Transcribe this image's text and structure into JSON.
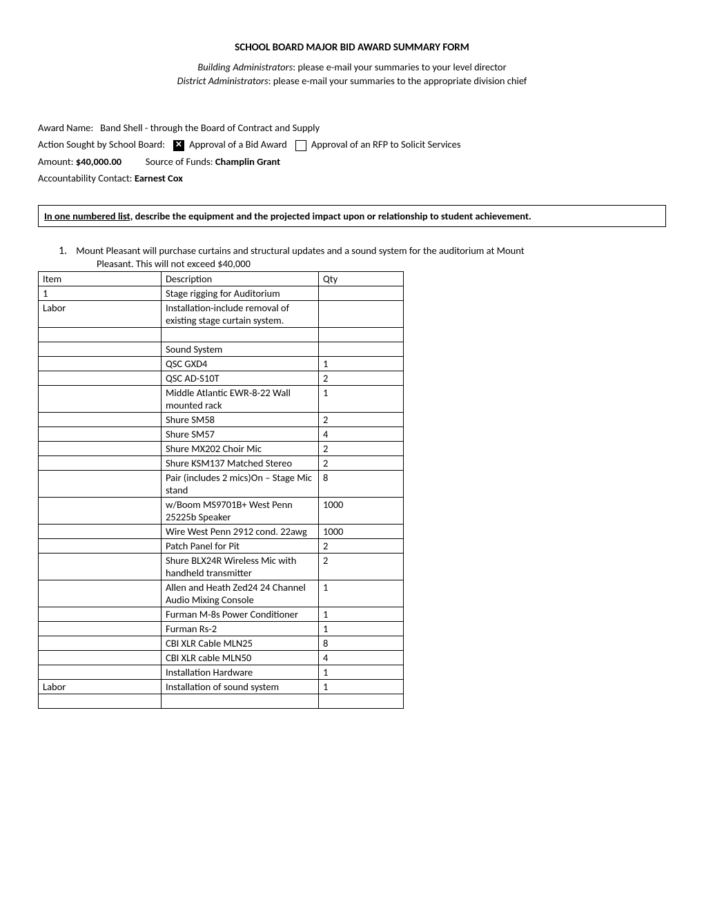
{
  "title": "SCHOOL BOARD  MAJOR BID AWARD SUMMARY FORM",
  "subtitles": [
    {
      "label": "Building Administrators",
      "text": ": please e-mail your summaries to your level director"
    },
    {
      "label": "District Administrators",
      "text": ": please e-mail your summaries to the appropriate division chief"
    }
  ],
  "award_name_label": "Award Name:",
  "award_name": "Band Shell - through the Board of Contract and Supply",
  "action_label": "Action Sought by School Board:",
  "action_bid": "Approval of a Bid Award",
  "action_rfp": "Approval of an RFP to Solicit Services",
  "bid_checked": true,
  "rfp_checked": false,
  "amount_label": "Amount:",
  "amount": "$40,000.00",
  "source_label": "Source of Funds:",
  "source": "Champlin Grant",
  "contact_label": "Accountability Contact:",
  "contact": "Earnest Cox",
  "instruction_underline": "In one numbered list,",
  "instruction_rest": " describe the  equipment and the projected impact upon or relationship to student achievement.",
  "list_number": "1.",
  "list_text_1": "Mount Pleasant will purchase curtains and structural updates and a sound system for the auditorium at Mount",
  "list_text_2": "Pleasant.  This will not exceed $40,000",
  "table": {
    "columns": [
      "Item",
      "Description",
      "Qty"
    ],
    "rows": [
      [
        "1",
        "Stage rigging for Auditorium",
        ""
      ],
      [
        "Labor",
        "Installation-include removal of existing stage curtain system.",
        ""
      ],
      [
        "",
        "",
        ""
      ],
      [
        "",
        "Sound System",
        ""
      ],
      [
        "",
        "QSC GXD4",
        "1"
      ],
      [
        "",
        "QSC AD-S10T",
        "2"
      ],
      [
        "",
        "Middle Atlantic EWR-8-22 Wall mounted rack",
        "1"
      ],
      [
        "",
        "Shure SM58",
        "2"
      ],
      [
        "",
        "Shure SM57",
        "4"
      ],
      [
        "",
        "Shure MX202 Choir Mic",
        "2"
      ],
      [
        "",
        "Shure KSM137 Matched Stereo",
        "2"
      ],
      [
        "",
        "Pair (includes 2 mics)On – Stage Mic stand",
        "8"
      ],
      [
        "",
        "w/Boom MS9701B+ West Penn 25225b Speaker",
        "1000"
      ],
      [
        "",
        "Wire West Penn 2912 cond. 22awg",
        "1000"
      ],
      [
        "",
        "Patch Panel for Pit",
        "2"
      ],
      [
        "",
        "Shure BLX24R Wireless Mic with handheld transmitter",
        "2"
      ],
      [
        "",
        "Allen and Heath Zed24 24 Channel Audio Mixing Console",
        "1"
      ],
      [
        "",
        "Furman M-8s Power Conditioner",
        "1"
      ],
      [
        "",
        "Furman Rs-2",
        "1"
      ],
      [
        "",
        "CBI XLR Cable MLN25",
        "8"
      ],
      [
        "",
        "CBI XLR cable MLN50",
        "4"
      ],
      [
        "",
        "Installation Hardware",
        "1"
      ],
      [
        "Labor",
        "Installation of sound system",
        "1"
      ],
      [
        "",
        "",
        ""
      ]
    ]
  }
}
